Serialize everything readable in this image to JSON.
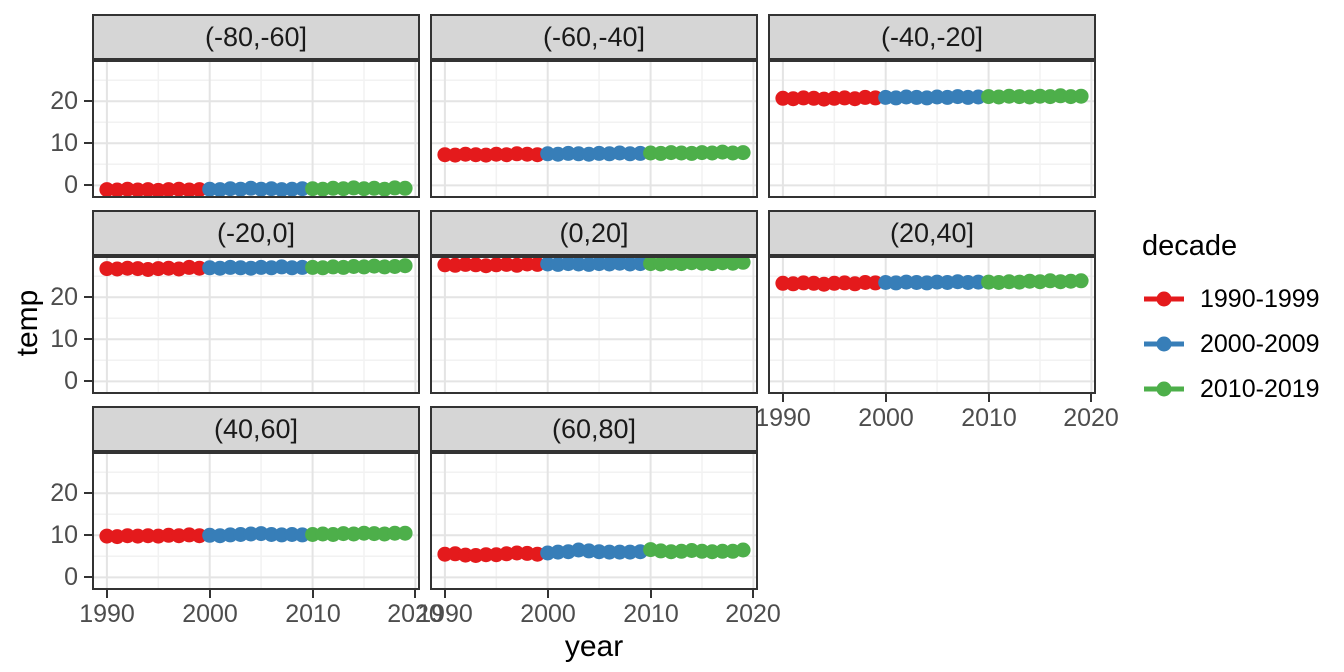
{
  "chart_data": {
    "type": "scatter",
    "xlabel": "year",
    "ylabel": "temp",
    "legend_title": "decade",
    "legend_position": "right",
    "grid": true,
    "x_range": [
      1988.55,
      2020.45
    ],
    "y_range": [
      -3.0,
      29.8
    ],
    "x_ticks": [
      1990,
      2000,
      2010,
      2020
    ],
    "x_tick_labels": [
      "1990",
      "2000",
      "2010",
      "2020"
    ],
    "y_ticks": [
      0,
      10,
      20
    ],
    "y_tick_labels": [
      "0",
      "10",
      "20"
    ],
    "x_minor_ticks": [
      1995,
      2005,
      2015
    ],
    "y_minor_ticks": [
      5,
      15,
      25
    ],
    "years": [
      1990,
      1991,
      1992,
      1993,
      1994,
      1995,
      1996,
      1997,
      1998,
      1999,
      2000,
      2001,
      2002,
      2003,
      2004,
      2005,
      2006,
      2007,
      2008,
      2009,
      2010,
      2011,
      2012,
      2013,
      2014,
      2015,
      2016,
      2017,
      2018,
      2019
    ],
    "decades": [
      {
        "name": "1990-1999",
        "color": "#E41A1C"
      },
      {
        "name": "2000-2009",
        "color": "#377EB8"
      },
      {
        "name": "2010-2019",
        "color": "#4DAF4A"
      }
    ],
    "facets": [
      {
        "label": "(-80,-60]",
        "values": [
          -1.0,
          -1.1,
          -0.9,
          -1.1,
          -1.0,
          -1.2,
          -1.0,
          -0.9,
          -1.1,
          -1.0,
          -0.9,
          -1.0,
          -0.8,
          -0.9,
          -0.7,
          -0.9,
          -0.8,
          -1.0,
          -0.9,
          -0.8,
          -0.8,
          -0.9,
          -0.7,
          -0.8,
          -0.6,
          -0.8,
          -0.7,
          -0.9,
          -0.6,
          -0.7
        ]
      },
      {
        "label": "(-60,-40]",
        "values": [
          7.3,
          7.2,
          7.4,
          7.3,
          7.2,
          7.4,
          7.3,
          7.5,
          7.4,
          7.3,
          7.5,
          7.4,
          7.6,
          7.5,
          7.4,
          7.6,
          7.5,
          7.7,
          7.5,
          7.6,
          7.7,
          7.6,
          7.8,
          7.7,
          7.6,
          7.8,
          7.7,
          7.9,
          7.7,
          7.8
        ]
      },
      {
        "label": "(-40,-20]",
        "values": [
          20.7,
          20.6,
          20.8,
          20.7,
          20.5,
          20.7,
          20.8,
          20.6,
          20.9,
          20.8,
          20.9,
          20.8,
          21.0,
          20.9,
          20.8,
          21.0,
          20.9,
          21.1,
          20.9,
          21.0,
          21.1,
          21.0,
          21.2,
          21.1,
          21.0,
          21.2,
          21.1,
          21.3,
          21.1,
          21.2
        ]
      },
      {
        "label": "(-20,0]",
        "values": [
          26.8,
          26.7,
          26.9,
          26.8,
          26.6,
          26.8,
          26.9,
          26.7,
          27.1,
          26.9,
          27.0,
          26.9,
          27.1,
          27.0,
          26.9,
          27.1,
          27.0,
          27.2,
          27.0,
          27.1,
          27.1,
          27.0,
          27.2,
          27.1,
          27.3,
          27.2,
          27.4,
          27.2,
          27.3,
          27.5
        ]
      },
      {
        "label": "(0,20]",
        "values": [
          27.7,
          27.6,
          27.8,
          27.7,
          27.5,
          27.7,
          27.8,
          27.6,
          27.9,
          27.8,
          27.9,
          27.8,
          28.0,
          27.9,
          27.8,
          28.0,
          27.9,
          28.1,
          27.9,
          28.0,
          28.0,
          27.9,
          28.1,
          28.0,
          28.2,
          28.1,
          28.0,
          28.2,
          28.1,
          28.3
        ]
      },
      {
        "label": "(20,40]",
        "values": [
          23.3,
          23.2,
          23.4,
          23.3,
          23.1,
          23.3,
          23.4,
          23.2,
          23.5,
          23.4,
          23.5,
          23.4,
          23.6,
          23.5,
          23.4,
          23.6,
          23.5,
          23.7,
          23.5,
          23.6,
          23.6,
          23.5,
          23.7,
          23.6,
          23.8,
          23.7,
          23.9,
          23.7,
          23.8,
          23.9
        ]
      },
      {
        "label": "(40,60]",
        "values": [
          9.8,
          9.7,
          9.9,
          9.8,
          9.9,
          9.8,
          10.0,
          9.9,
          10.1,
          9.9,
          10.0,
          9.9,
          10.1,
          10.2,
          10.3,
          10.4,
          10.2,
          10.1,
          10.2,
          10.1,
          10.2,
          10.3,
          10.2,
          10.4,
          10.3,
          10.5,
          10.4,
          10.3,
          10.5,
          10.5
        ]
      },
      {
        "label": "(60,80]",
        "values": [
          5.5,
          5.6,
          5.3,
          5.2,
          5.4,
          5.4,
          5.6,
          5.8,
          5.7,
          5.5,
          5.8,
          6.0,
          6.1,
          6.5,
          6.3,
          6.1,
          6.0,
          6.0,
          6.0,
          6.1,
          6.6,
          6.3,
          6.1,
          6.2,
          6.4,
          6.2,
          6.1,
          6.2,
          6.2,
          6.5
        ]
      }
    ],
    "style": {
      "strip_fill": "#d6d6d6",
      "panel_border": "#333333",
      "grid_major": "#e4e4e4",
      "grid_minor": "#f2f2f2",
      "tick_text": "#4d4d4d"
    }
  }
}
